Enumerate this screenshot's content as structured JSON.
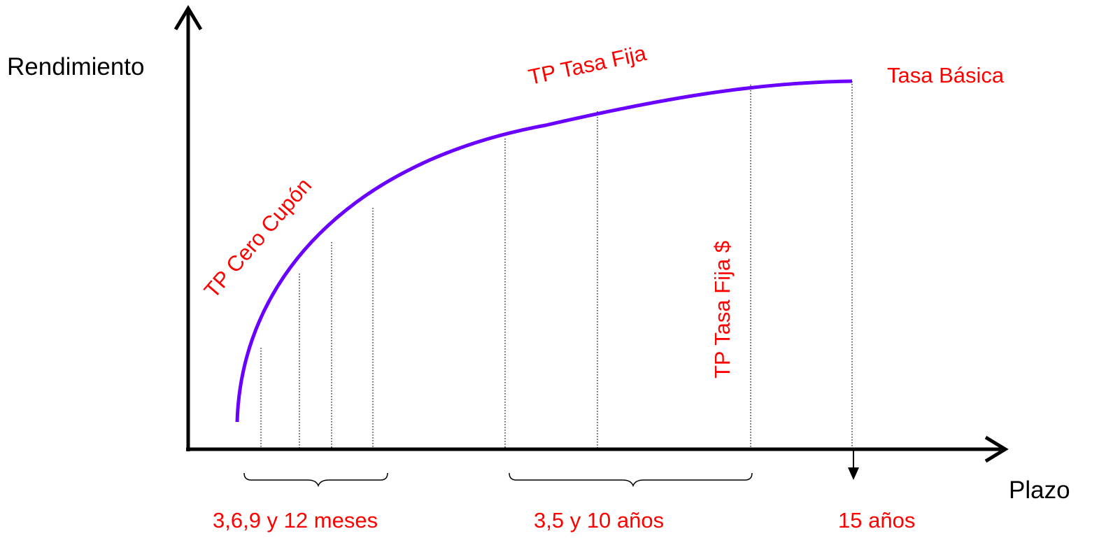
{
  "colors": {
    "curve": "#6a00ff",
    "label": "#ff0000",
    "axis": "#000000"
  },
  "axes": {
    "y_label": "Rendimiento",
    "x_label": "Plazo"
  },
  "curve_labels": {
    "cero_cupon": "TP Cero Cupón",
    "tasa_fija": "TP Tasa Fija",
    "tasa_fija_usd": "TP Tasa Fija $",
    "tasa_basica": "Tasa Básica"
  },
  "maturity_groups": [
    {
      "label": "3,6,9 y 12 meses"
    },
    {
      "label": "3,5 y 10 años"
    },
    {
      "label": "15 años"
    }
  ]
}
